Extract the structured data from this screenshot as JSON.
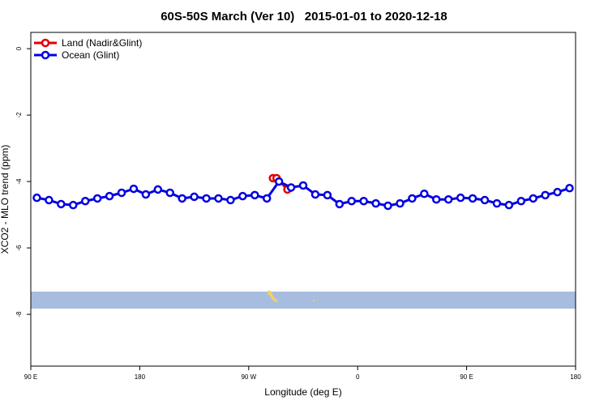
{
  "chart_data": {
    "type": "line",
    "title": "60S-50S March (Ver 10)   2015-01-01 to 2020-12-18",
    "xlabel": "Longitude (deg E)",
    "ylabel": "XCO2 - MLO trend (ppm)",
    "xlim": [
      90,
      540
    ],
    "xticks": [
      {
        "value": 90,
        "label": "90 E"
      },
      {
        "value": 180,
        "label": "180"
      },
      {
        "value": 270,
        "label": "90 W"
      },
      {
        "value": 360,
        "label": "0"
      },
      {
        "value": 450,
        "label": "90 E"
      },
      {
        "value": 540,
        "label": "180"
      }
    ],
    "ylim": [
      -9.56,
      0.49
    ],
    "yticks": [
      0,
      -2,
      -4,
      -6,
      -8
    ],
    "legend": "top-left",
    "series": [
      {
        "name": "Land (Nadir&Glint)",
        "color": "#e00000",
        "x": [
          290,
          293,
          302
        ],
        "values": [
          -3.9,
          -3.9,
          -4.24
        ]
      },
      {
        "name": "Ocean (Glint)",
        "color": "#0000e0",
        "x": [
          95,
          105,
          115,
          125,
          135,
          145,
          155,
          165,
          175,
          185,
          195,
          205,
          215,
          225,
          235,
          245,
          255,
          265,
          275,
          285,
          295,
          305,
          315,
          325,
          335,
          345,
          355,
          365,
          375,
          385,
          395,
          405,
          415,
          425,
          435,
          445,
          455,
          465,
          475,
          485,
          495,
          505,
          515,
          525,
          535
        ],
        "values": [
          -4.49,
          -4.56,
          -4.68,
          -4.71,
          -4.59,
          -4.51,
          -4.44,
          -4.34,
          -4.22,
          -4.39,
          -4.24,
          -4.34,
          -4.51,
          -4.46,
          -4.51,
          -4.51,
          -4.56,
          -4.44,
          -4.41,
          -4.51,
          -4.0,
          -4.18,
          -4.12,
          -4.39,
          -4.41,
          -4.68,
          -4.59,
          -4.59,
          -4.66,
          -4.73,
          -4.66,
          -4.51,
          -4.37,
          -4.54,
          -4.54,
          -4.49,
          -4.51,
          -4.56,
          -4.66,
          -4.71,
          -4.59,
          -4.51,
          -4.41,
          -4.32,
          -4.2
        ]
      }
    ]
  }
}
